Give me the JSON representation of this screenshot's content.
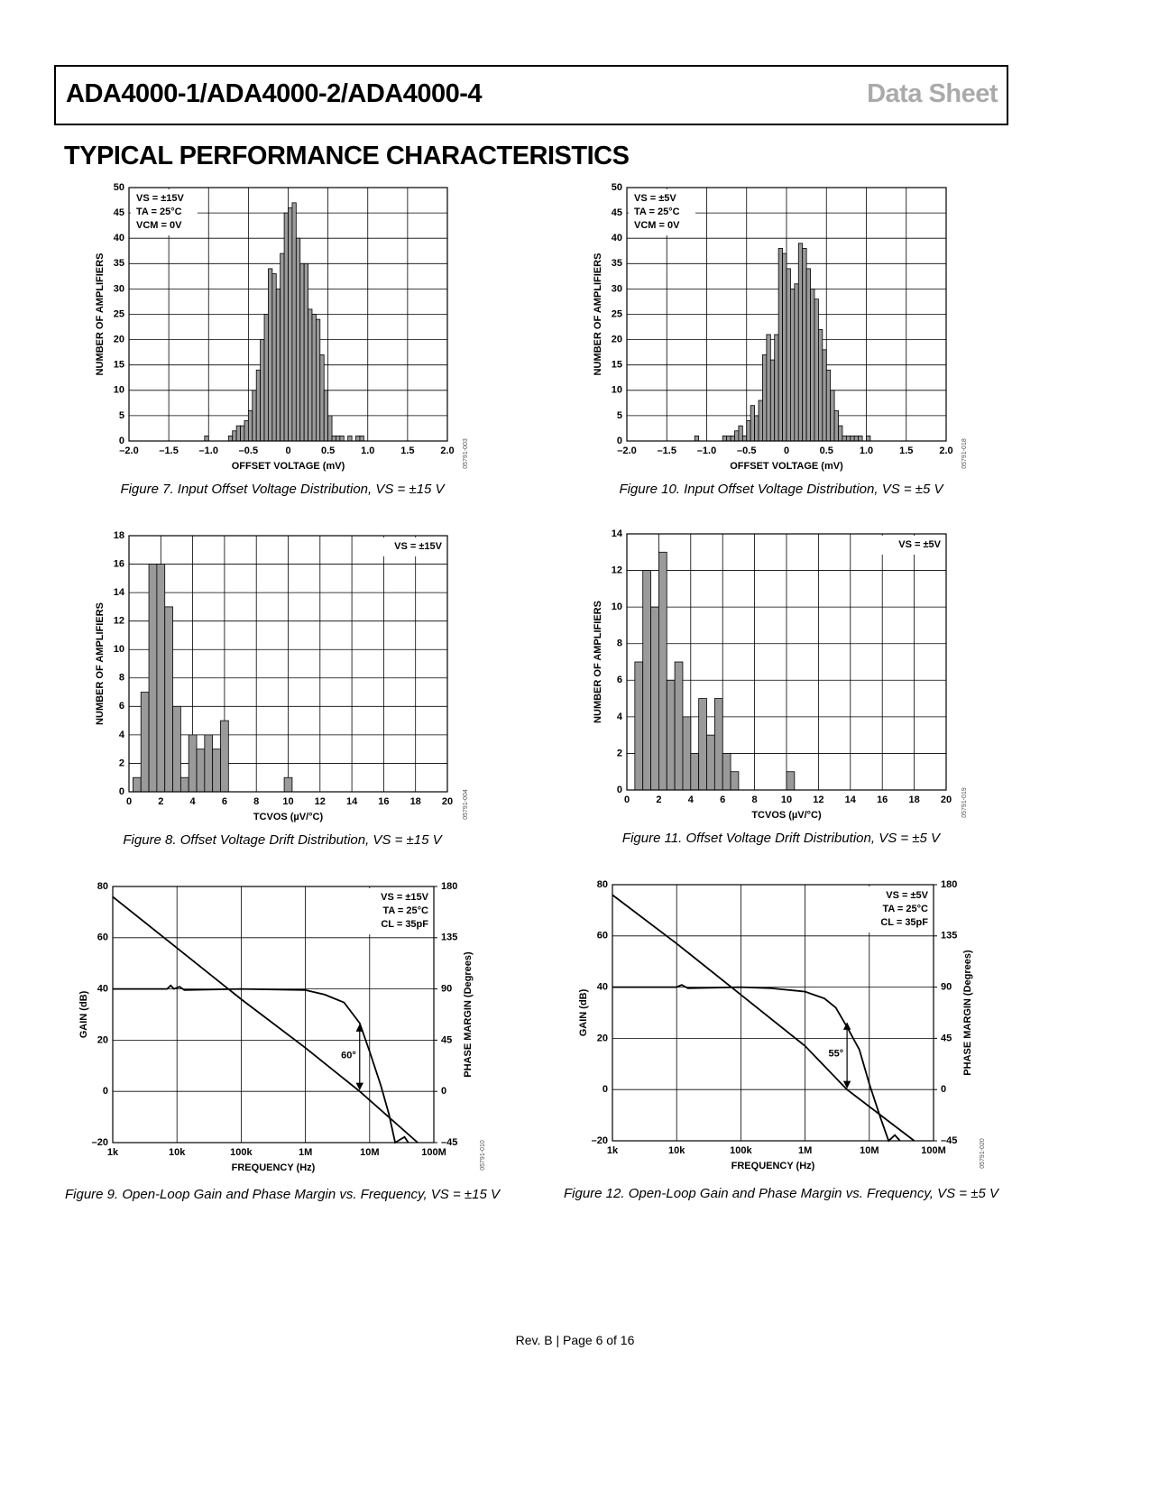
{
  "header": {
    "title": "ADA4000-1/ADA4000-2/ADA4000-4",
    "label": "Data Sheet"
  },
  "section_title": "TYPICAL PERFORMANCE CHARACTERISTICS",
  "chart_data": [
    {
      "type": "histogram",
      "xlabel": "OFFSET VOLTAGE (mV)",
      "ylabel": "NUMBER OF AMPLIFIERS",
      "color": "#9a9a9a",
      "grid": true,
      "annotation_corner": "top-left",
      "annotations": [
        "VS = ±15V",
        "TA = 25°C",
        "VCM = 0V"
      ],
      "bins": [
        -1.05,
        -1.0,
        -0.95,
        -0.9,
        -0.85,
        -0.8,
        -0.75,
        -0.7,
        -0.65,
        -0.6,
        -0.55,
        -0.5,
        -0.45,
        -0.4,
        -0.35,
        -0.3,
        -0.25,
        -0.2,
        -0.15,
        -0.1,
        -0.05,
        0,
        0.05,
        0.1,
        0.15,
        0.2,
        0.25,
        0.3,
        0.35,
        0.4,
        0.45,
        0.5,
        0.55,
        0.6,
        0.65,
        0.7,
        0.75,
        0.8,
        0.85,
        0.9,
        0.95,
        1.0
      ],
      "values": [
        1,
        0,
        0,
        0,
        0,
        0,
        1,
        2,
        3,
        3,
        4,
        6,
        10,
        14,
        20,
        25,
        34,
        33,
        30,
        37,
        45,
        46,
        47,
        40,
        35,
        35,
        26,
        25,
        24,
        17,
        10,
        5,
        1,
        1,
        1,
        0,
        1,
        0,
        1,
        1,
        0
      ],
      "xlim": [
        -2,
        2
      ],
      "xticks": [
        {
          "value": -2,
          "label": "–2.0"
        },
        {
          "value": -1.5,
          "label": "–1.5"
        },
        {
          "value": -1,
          "label": "–1.0"
        },
        {
          "value": -0.5,
          "label": "–0.5"
        },
        0,
        0.5,
        {
          "value": 1,
          "label": "1.0"
        },
        1.5,
        {
          "value": 2,
          "label": "2.0"
        }
      ],
      "ylim": [
        0,
        50
      ],
      "yticks": [
        0,
        5,
        10,
        15,
        20,
        25,
        30,
        35,
        40,
        45,
        50
      ],
      "caption": "Figure 7. Input Offset Voltage Distribution, VS = ±15 V",
      "code": "05791-003"
    },
    {
      "type": "histogram",
      "xlabel": "OFFSET VOLTAGE (mV)",
      "ylabel": "NUMBER OF AMPLIFIERS",
      "color": "#9a9a9a",
      "grid": true,
      "annotation_corner": "top-left",
      "annotations": [
        "VS = ±5V",
        "TA = 25°C",
        "VCM = 0V"
      ],
      "bins": [
        -1.15,
        -1.1,
        -1.05,
        -1.0,
        -0.95,
        -0.9,
        -0.85,
        -0.8,
        -0.75,
        -0.7,
        -0.65,
        -0.6,
        -0.55,
        -0.5,
        -0.45,
        -0.4,
        -0.35,
        -0.3,
        -0.25,
        -0.2,
        -0.15,
        -0.1,
        -0.05,
        0,
        0.05,
        0.1,
        0.15,
        0.2,
        0.25,
        0.3,
        0.35,
        0.4,
        0.45,
        0.5,
        0.55,
        0.6,
        0.65,
        0.7,
        0.75,
        0.8,
        0.85,
        0.9,
        0.95,
        1.0,
        1.05
      ],
      "values": [
        1,
        0,
        0,
        0,
        0,
        0,
        0,
        1,
        1,
        1,
        2,
        3,
        1,
        4,
        7,
        5,
        8,
        17,
        21,
        16,
        21,
        38,
        37,
        34,
        30,
        31,
        39,
        38,
        34,
        30,
        28,
        22,
        18,
        14,
        10,
        6,
        3,
        1,
        1,
        1,
        1,
        1,
        0,
        1
      ],
      "xlim": [
        -2,
        2
      ],
      "xticks": [
        {
          "value": -2,
          "label": "–2.0"
        },
        {
          "value": -1.5,
          "label": "–1.5"
        },
        {
          "value": -1,
          "label": "–1.0"
        },
        {
          "value": -0.5,
          "label": "–0.5"
        },
        0,
        0.5,
        {
          "value": 1,
          "label": "1.0"
        },
        1.5,
        {
          "value": 2,
          "label": "2.0"
        }
      ],
      "ylim": [
        0,
        50
      ],
      "yticks": [
        0,
        5,
        10,
        15,
        20,
        25,
        30,
        35,
        40,
        45,
        50
      ],
      "caption": "Figure 10. Input Offset Voltage Distribution, VS = ±5 V",
      "code": "05791-018"
    },
    {
      "type": "histogram",
      "xlabel": "TCVOS (µV/°C)",
      "ylabel": "NUMBER OF AMPLIFIERS",
      "color": "#9a9a9a",
      "grid": true,
      "annotation_corner": "top-right",
      "annotations": [
        "VS = ±15V"
      ],
      "bins": [
        0.25,
        0.75,
        1.25,
        1.75,
        2.25,
        2.75,
        3.25,
        3.75,
        4.25,
        4.75,
        5.25,
        5.75,
        6.25,
        6.75,
        7.25,
        7.75,
        8.25,
        8.75,
        9.25,
        9.75,
        10.25
      ],
      "values": [
        1,
        7,
        16,
        16,
        13,
        6,
        1,
        4,
        3,
        4,
        3,
        5,
        0,
        0,
        0,
        0,
        0,
        0,
        0,
        1
      ],
      "xlim": [
        0,
        20
      ],
      "xticks": [
        0,
        2,
        4,
        6,
        8,
        10,
        12,
        14,
        16,
        18,
        20
      ],
      "ylim": [
        0,
        18
      ],
      "yticks": [
        0,
        2,
        4,
        6,
        8,
        10,
        12,
        14,
        16,
        18
      ],
      "caption": "Figure 8. Offset Voltage Drift Distribution, VS = ±15 V",
      "code": "05791-004"
    },
    {
      "type": "histogram",
      "xlabel": "TCVOS (µV/°C)",
      "ylabel": "NUMBER OF AMPLIFIERS",
      "color": "#9a9a9a",
      "grid": true,
      "annotation_corner": "top-right",
      "annotations": [
        "VS = ±5V"
      ],
      "bins": [
        0.5,
        1.0,
        1.5,
        2.0,
        2.5,
        3.0,
        3.5,
        4.0,
        4.5,
        5.0,
        5.5,
        6.0,
        6.5,
        7.0,
        7.5,
        8.0,
        8.5,
        9.0,
        9.5,
        10.0,
        10.5
      ],
      "values": [
        7,
        12,
        10,
        13,
        6,
        7,
        4,
        2,
        5,
        3,
        5,
        2,
        1,
        0,
        0,
        0,
        0,
        0,
        0,
        1
      ],
      "xlim": [
        0,
        20
      ],
      "xticks": [
        0,
        2,
        4,
        6,
        8,
        10,
        12,
        14,
        16,
        18,
        20
      ],
      "ylim": [
        0,
        14
      ],
      "yticks": [
        0,
        2,
        4,
        6,
        8,
        10,
        12,
        14
      ],
      "caption": "Figure 11. Offset Voltage Drift Distribution, VS = ±5 V",
      "code": "05791-019"
    },
    {
      "type": "line",
      "xscale": "log",
      "xlabel": "FREQUENCY (Hz)",
      "ylabel": "GAIN (dB)",
      "y2label": "PHASE MARGIN (Degrees)",
      "grid": true,
      "annotation_corner": "top-right",
      "annotations": [
        "VS = ±15V",
        "TA = 25°C",
        "CL = 35pF"
      ],
      "phase_margin_label": "60°",
      "series": [
        {
          "color": "#000000",
          "x": [
            1000,
            10000,
            100000,
            1000000,
            7000000,
            56000000
          ],
          "values": [
            76,
            56,
            36,
            17,
            0,
            -20
          ]
        },
        {
          "color": "#000000",
          "axis": "y2",
          "x": [
            1000,
            7000,
            8000,
            9000,
            11000,
            13000,
            100000,
            1000000,
            2000000,
            4000000,
            7000000,
            10000000,
            15000000,
            20000000,
            25000000,
            35000000,
            40000000
          ],
          "values": [
            90,
            90,
            93,
            90,
            92,
            89,
            90,
            89,
            85,
            78,
            60,
            35,
            5,
            -20,
            -45,
            -40,
            -45
          ]
        }
      ],
      "xlim": [
        1000,
        100000000
      ],
      "xticks": [
        {
          "value": 1000,
          "label": "1k"
        },
        {
          "value": 10000,
          "label": "10k"
        },
        {
          "value": 100000,
          "label": "100k"
        },
        {
          "value": 1000000,
          "label": "1M"
        },
        {
          "value": 10000000,
          "label": "10M"
        },
        {
          "value": 100000000,
          "label": "100M"
        }
      ],
      "ylim": [
        -20,
        80
      ],
      "yticks": [
        {
          "value": -20,
          "label": "–20"
        },
        0,
        20,
        40,
        60,
        80
      ],
      "y2lim": [
        -45,
        180
      ],
      "y2ticks": [
        {
          "value": -45,
          "label": "–45"
        },
        0,
        45,
        90,
        135,
        180
      ],
      "caption": "Figure 9. Open-Loop Gain and Phase Margin vs. Frequency, VS = ±15 V",
      "code": "05791-010"
    },
    {
      "type": "line",
      "xscale": "log",
      "xlabel": "FREQUENCY (Hz)",
      "ylabel": "GAIN (dB)",
      "y2label": "PHASE MARGIN (Degrees)",
      "grid": true,
      "annotation_corner": "top-right",
      "annotations": [
        "VS = ±5V",
        "TA = 25°C",
        "CL = 35pF"
      ],
      "phase_margin_label": "55°",
      "series": [
        {
          "color": "#000000",
          "x": [
            1000,
            10000,
            100000,
            1000000,
            4500000,
            50000000
          ],
          "values": [
            76,
            57,
            37,
            17,
            0,
            -20
          ]
        },
        {
          "color": "#000000",
          "axis": "y2",
          "x": [
            1000,
            10000,
            12000,
            15000,
            100000,
            300000,
            1000000,
            2000000,
            3000000,
            4500000,
            7000000,
            10000000,
            15000000,
            20000000,
            25000000,
            30000000
          ],
          "values": [
            90,
            90,
            92,
            89,
            90,
            89,
            86,
            80,
            72,
            55,
            35,
            5,
            -25,
            -45,
            -40,
            -45
          ]
        }
      ],
      "xlim": [
        1000,
        100000000
      ],
      "xticks": [
        {
          "value": 1000,
          "label": "1k"
        },
        {
          "value": 10000,
          "label": "10k"
        },
        {
          "value": 100000,
          "label": "100k"
        },
        {
          "value": 1000000,
          "label": "1M"
        },
        {
          "value": 10000000,
          "label": "10M"
        },
        {
          "value": 100000000,
          "label": "100M"
        }
      ],
      "ylim": [
        -20,
        80
      ],
      "yticks": [
        {
          "value": -20,
          "label": "–20"
        },
        0,
        20,
        40,
        60,
        80
      ],
      "y2lim": [
        -45,
        180
      ],
      "y2ticks": [
        {
          "value": -45,
          "label": "–45"
        },
        0,
        45,
        90,
        135,
        180
      ],
      "caption": "Figure 12. Open-Loop Gain and Phase Margin vs. Frequency, VS = ±5 V",
      "code": "05791-020"
    }
  ],
  "footer": "Rev. B | Page 6 of 16"
}
